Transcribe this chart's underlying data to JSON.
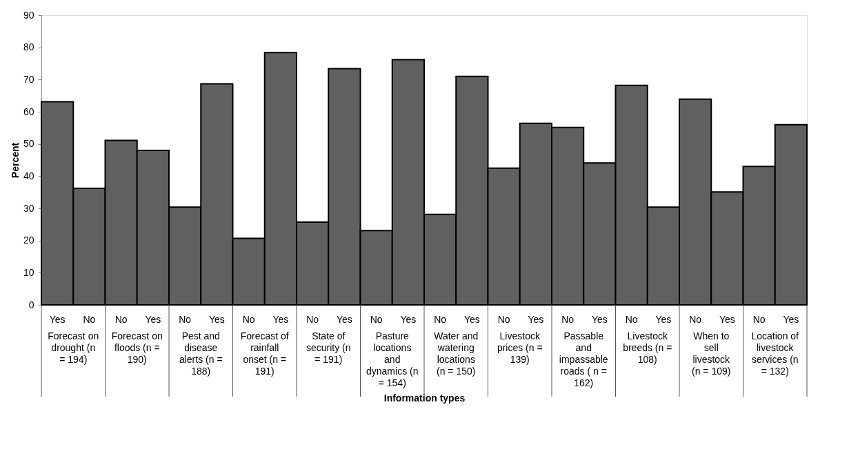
{
  "chart_data": {
    "type": "bar",
    "ylabel": "Percent",
    "categories": [
      "Yes",
      "No",
      "No",
      "Yes",
      "No",
      "Yes",
      "No",
      "Yes",
      "No",
      "Yes",
      "No",
      "Yes",
      "No",
      "Yes",
      "No",
      "Yes",
      "No",
      "Yes",
      "No",
      "Yes",
      "No",
      "Yes",
      "No",
      "Yes"
    ],
    "values": [
      63.1,
      36.2,
      51.1,
      48.0,
      30.4,
      68.7,
      20.7,
      78.4,
      25.7,
      73.4,
      23.1,
      76.2,
      28.1,
      71.0,
      42.5,
      56.4,
      55.1,
      44.1,
      68.2,
      30.4,
      63.9,
      35.1,
      43.0,
      56.0
    ],
    "color": "#606060",
    "ylim": [
      0,
      90
    ],
    "yticks": [
      0,
      10,
      20,
      30,
      40,
      50,
      60,
      70,
      80,
      90
    ],
    "grid": false,
    "annotations": [
      "Forecast on drought (n = 194)",
      "Forecast on floods (n = 190)",
      "Pest and disease alerts (n = 188)",
      "Forecast of rainfall onset (n = 191)",
      "State of security (n = 191)",
      "Pasture locations and dynamics (n = 154)",
      "Water and watering locations (n = 150)",
      "Livestock prices (n = 139)",
      "Passable and impassable roads ( n = 162)",
      "Livestock breeds (n = 108)",
      "When to sell livestock (n = 109)",
      "Location of livestock services (n = 132)",
      "Information types"
    ]
  }
}
